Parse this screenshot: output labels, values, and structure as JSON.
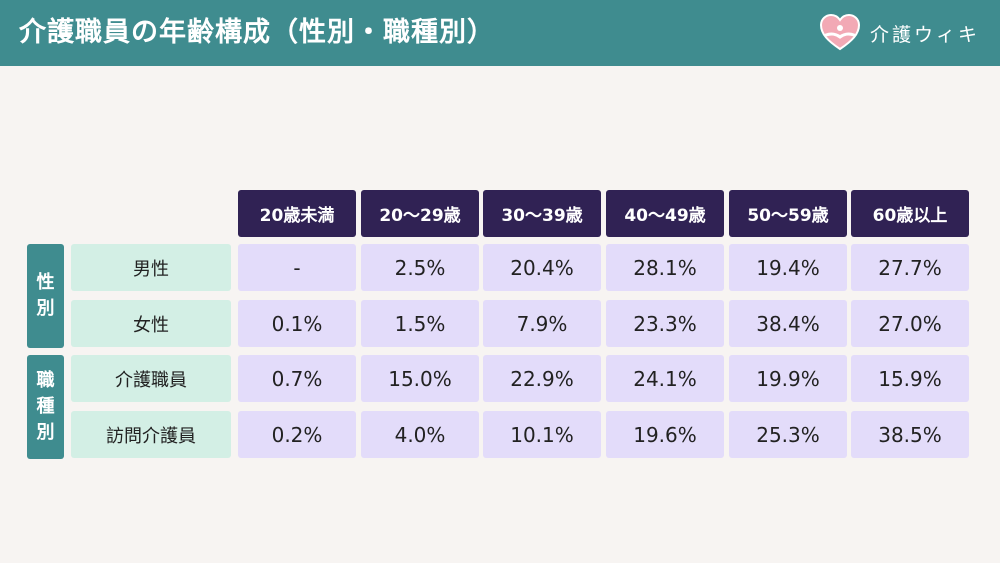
{
  "header": {
    "title": "介護職員の年齢構成（性別・職種別）",
    "logo_text": "介護ウィキ",
    "colors": {
      "bar": "#3f8c8f",
      "column_header": "#302254",
      "row_label": "#d3efe5",
      "cell": "#e3dcfa",
      "background": "#f7f4f2"
    }
  },
  "table": {
    "columns": [
      "20歳未満",
      "20〜29歳",
      "30〜39歳",
      "40〜49歳",
      "50〜59歳",
      "60歳以上"
    ],
    "groups": [
      {
        "label": [
          "性",
          "別"
        ],
        "rows": [
          {
            "label": "男性",
            "values": [
              "-",
              "2.5%",
              "20.4%",
              "28.1%",
              "19.4%",
              "27.7%"
            ]
          },
          {
            "label": "女性",
            "values": [
              "0.1%",
              "1.5%",
              "7.9%",
              "23.3%",
              "38.4%",
              "27.0%"
            ]
          }
        ]
      },
      {
        "label": [
          "職",
          "種",
          "別"
        ],
        "rows": [
          {
            "label": "介護職員",
            "values": [
              "0.7%",
              "15.0%",
              "22.9%",
              "24.1%",
              "19.9%",
              "15.9%"
            ]
          },
          {
            "label": "訪問介護員",
            "values": [
              "0.2%",
              "4.0%",
              "10.1%",
              "19.6%",
              "25.3%",
              "38.5%"
            ]
          }
        ]
      }
    ]
  }
}
